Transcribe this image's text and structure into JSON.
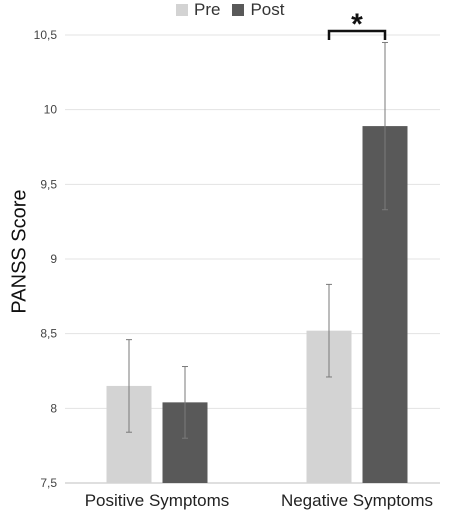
{
  "chart_data": {
    "type": "bar",
    "title": "",
    "xlabel": "",
    "ylabel": "PANSS Score",
    "ylim": [
      7.5,
      10.5
    ],
    "yticks": [
      "7,5",
      "8",
      "8,5",
      "9",
      "9,5",
      "10",
      "10,5"
    ],
    "ytick_values": [
      7.5,
      8,
      8.5,
      9,
      9.5,
      10,
      10.5
    ],
    "categories": [
      "Positive Symptoms",
      "Negative Symptoms"
    ],
    "series": [
      {
        "name": "Pre",
        "color": "#d3d3d3",
        "values": [
          8.15,
          8.52
        ],
        "errors": [
          0.31,
          0.31
        ]
      },
      {
        "name": "Post",
        "color": "#595959",
        "values": [
          8.04,
          9.89
        ],
        "errors": [
          0.24,
          0.56
        ]
      }
    ],
    "grid": true,
    "legend": "top-center",
    "annotation": {
      "text": "*",
      "category": "Negative Symptoms"
    }
  }
}
